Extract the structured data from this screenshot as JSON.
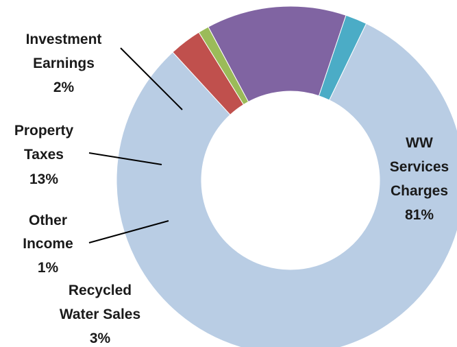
{
  "chart_data": {
    "type": "pie",
    "variant": "donut",
    "title": "",
    "legend": "none",
    "slices": [
      {
        "label": [
          "WW",
          "Services",
          "Charges"
        ],
        "pct_label": "81%",
        "value": 81,
        "color": "#b9cde4"
      },
      {
        "label": [
          "Recycled",
          "Water Sales"
        ],
        "pct_label": "3%",
        "value": 3,
        "color": "#c0504d"
      },
      {
        "label": [
          "Other",
          "Income"
        ],
        "pct_label": "1%",
        "value": 1,
        "color": "#9bbb59"
      },
      {
        "label": [
          "Property",
          "Taxes"
        ],
        "pct_label": "13%",
        "value": 13,
        "color": "#8064a2"
      },
      {
        "label": [
          "Investment",
          "Earnings"
        ],
        "pct_label": "2%",
        "value": 2,
        "color": "#4bacc6"
      }
    ]
  }
}
